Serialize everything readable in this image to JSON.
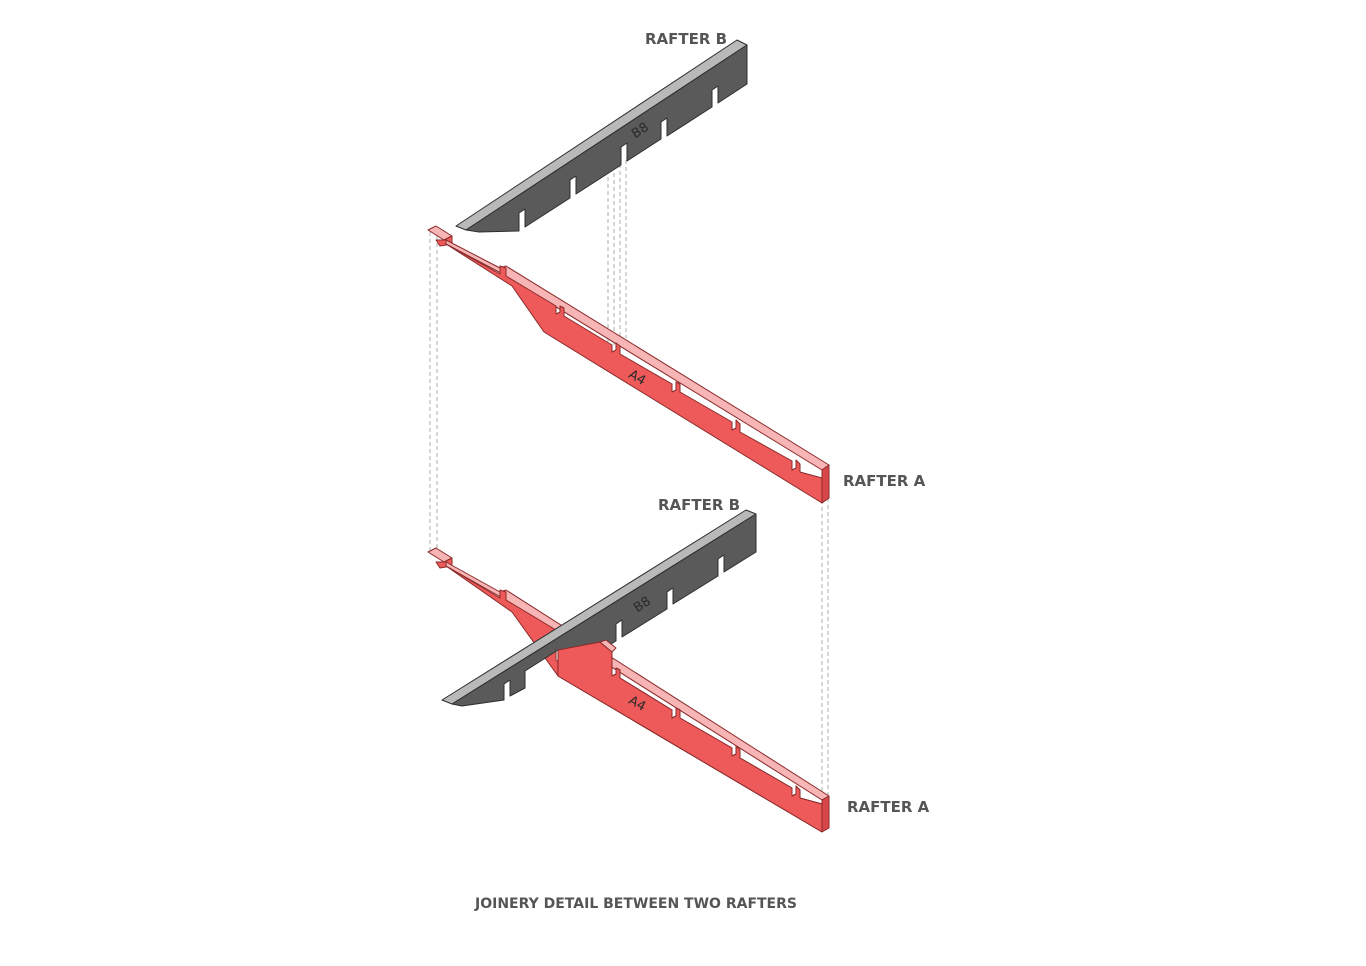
{
  "labels": {
    "rafter_b_top": "RAFTER B",
    "rafter_a_top": "RAFTER A",
    "rafter_b_bottom": "RAFTER B",
    "rafter_a_bottom": "RAFTER A",
    "part_b_top": "B8",
    "part_a_top": "A4",
    "part_b_bottom": "B8",
    "part_a_bottom": "A4"
  },
  "caption": "JOINERY DETAIL BETWEEN TWO RAFTERS",
  "colors": {
    "rafter_a": "#ee5a5a",
    "rafter_b": "#5a5a5a",
    "label_text": "#555555"
  }
}
